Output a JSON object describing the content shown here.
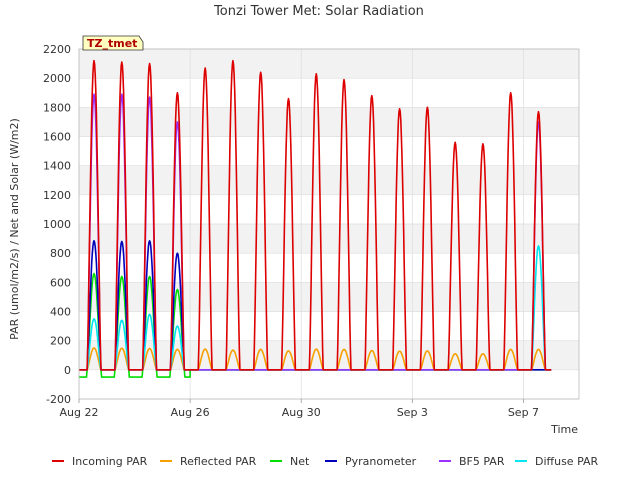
{
  "chart_data": {
    "type": "line",
    "title": "Tonzi Tower Met: Solar Radiation",
    "xlabel": "Time",
    "ylabel": "PAR (umol/m2/s) / Net and Solar (W/m2)",
    "badge": "TZ_tmet",
    "ylim": [
      -200,
      2200
    ],
    "yticks": [
      -200,
      0,
      200,
      400,
      600,
      800,
      1000,
      1200,
      1400,
      1600,
      1800,
      2000,
      2200
    ],
    "xlim": [
      "2023-08-22",
      "2023-09-09"
    ],
    "xticks": [
      {
        "date": "2023-08-22",
        "label": "Aug 22"
      },
      {
        "date": "2023-08-26",
        "label": "Aug 26"
      },
      {
        "date": "2023-08-30",
        "label": "Aug 30"
      },
      {
        "date": "2023-09-03",
        "label": "Sep 3"
      },
      {
        "date": "2023-09-07",
        "label": "Sep 7"
      }
    ],
    "grid": true,
    "legend_position": "bottom",
    "days": [
      "2023-08-22",
      "2023-08-23",
      "2023-08-24",
      "2023-08-25",
      "2023-08-26",
      "2023-08-27",
      "2023-08-28",
      "2023-08-29",
      "2023-08-30",
      "2023-08-31",
      "2023-09-01",
      "2023-09-02",
      "2023-09-03",
      "2023-09-04",
      "2023-09-05",
      "2023-09-06",
      "2023-09-07"
    ],
    "series": [
      {
        "name": "Incoming PAR",
        "color": "#dd0000",
        "daily_peak": [
          2120,
          2110,
          2100,
          1900,
          2070,
          2120,
          2040,
          1860,
          2030,
          1990,
          1880,
          1790,
          1800,
          1560,
          1550,
          1900,
          1770
        ]
      },
      {
        "name": "Reflected PAR",
        "color": "#f5a000",
        "daily_peak": [
          150,
          148,
          146,
          140,
          142,
          135,
          140,
          130,
          142,
          140,
          132,
          128,
          130,
          110,
          110,
          140,
          140
        ]
      },
      {
        "name": "Net",
        "color": "#00dd00",
        "daily_peak": [
          660,
          640,
          640,
          550,
          null,
          null,
          null,
          null,
          null,
          null,
          null,
          null,
          null,
          null,
          null,
          null,
          null
        ],
        "night_value": -50
      },
      {
        "name": "Pyranometer",
        "color": "#0000bb",
        "daily_peak": [
          885,
          880,
          885,
          800,
          null,
          null,
          null,
          null,
          null,
          null,
          null,
          null,
          null,
          null,
          null,
          null,
          null
        ]
      },
      {
        "name": "BF5 PAR",
        "color": "#9b30ff",
        "daily_peak": [
          1890,
          1890,
          1870,
          1700,
          null,
          null,
          null,
          null,
          null,
          null,
          null,
          null,
          null,
          null,
          null,
          null,
          1700
        ]
      },
      {
        "name": "Diffuse PAR",
        "color": "#00e5ee",
        "daily_peak": [
          350,
          340,
          380,
          300,
          null,
          null,
          null,
          null,
          null,
          null,
          null,
          null,
          null,
          null,
          null,
          null,
          850
        ]
      }
    ]
  }
}
